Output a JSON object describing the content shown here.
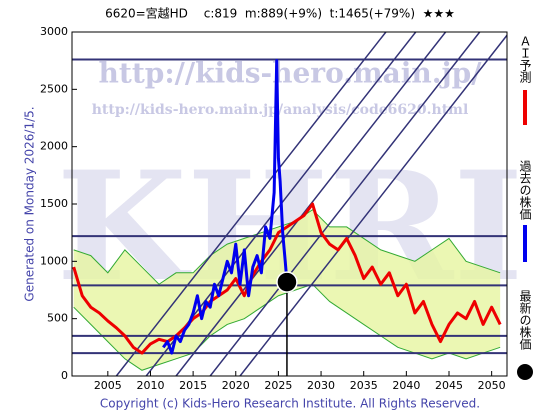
{
  "chart_data": {
    "type": "line",
    "title": "6620=宮越HD　 c:819  m:889(+9%)  t:1465(+79%)  ★★★",
    "side_label": "Generated on Monday 2026/1/5.",
    "footer": "Copyright (c) Kids-Hero Research Institute. All Rights Reserved.",
    "watermarks": [
      "http://kids-hero.main.jp/",
      "http://kids-hero.main.jp/analysis/code6620.html",
      "KHRI"
    ],
    "xlim": [
      2000.8,
      2051.8
    ],
    "xticks": [
      2005,
      2010,
      2015,
      2020,
      2025,
      2030,
      2035,
      2040,
      2045,
      2050
    ],
    "ylim": [
      0,
      3000
    ],
    "yticks": [
      0,
      500,
      1000,
      1500,
      2000,
      2500,
      3000
    ],
    "hlines": [
      2760,
      1220,
      790,
      350,
      200
    ],
    "hline_color": "#333377",
    "trend_lines": [
      {
        "x": [
          2006,
          2037.6
        ],
        "y": [
          0,
          3000
        ]
      },
      {
        "x": [
          2009.5,
          2041.1
        ],
        "y": [
          0,
          3000
        ]
      },
      {
        "x": [
          2013,
          2044.6
        ],
        "y": [
          0,
          3000
        ]
      },
      {
        "x": [
          2017,
          2048.6
        ],
        "y": [
          0,
          3000
        ]
      },
      {
        "x": [
          2020.5,
          2052.1
        ],
        "y": [
          0,
          3000
        ]
      }
    ],
    "band": {
      "color": "#e6f5a0",
      "edge": "#33aa33",
      "x": [
        2001,
        2003,
        2005,
        2007,
        2009,
        2011,
        2013,
        2015,
        2017,
        2019,
        2021,
        2023,
        2025,
        2027,
        2029,
        2031,
        2033,
        2035,
        2037,
        2039,
        2041,
        2043,
        2045,
        2047,
        2049,
        2051
      ],
      "upper": [
        1100,
        1050,
        900,
        1100,
        950,
        800,
        900,
        900,
        1050,
        1150,
        1200,
        1250,
        1300,
        1350,
        1450,
        1300,
        1300,
        1200,
        1100,
        1050,
        1000,
        1100,
        1200,
        1000,
        950,
        900
      ],
      "lower": [
        600,
        450,
        300,
        150,
        50,
        100,
        150,
        200,
        350,
        450,
        500,
        600,
        700,
        750,
        800,
        650,
        550,
        450,
        350,
        250,
        200,
        150,
        200,
        150,
        200,
        250
      ]
    },
    "series": [
      {
        "name": "ＡＩ予測",
        "color": "#ee0000",
        "x": [
          2001,
          2002,
          2003,
          2004,
          2005,
          2006,
          2007,
          2008,
          2009,
          2010,
          2011,
          2012,
          2013,
          2014,
          2015,
          2016,
          2017,
          2018,
          2019,
          2020,
          2021,
          2022,
          2023,
          2024,
          2025,
          2026,
          2027,
          2028,
          2029,
          2030,
          2031,
          2032,
          2033,
          2034,
          2035,
          2036,
          2037,
          2038,
          2039,
          2040,
          2041,
          2042,
          2043,
          2044,
          2045,
          2046,
          2047,
          2048,
          2049,
          2050,
          2051
        ],
        "values": [
          950,
          700,
          600,
          550,
          480,
          420,
          350,
          250,
          200,
          280,
          320,
          300,
          350,
          420,
          500,
          550,
          650,
          700,
          750,
          850,
          700,
          880,
          1000,
          1100,
          1250,
          1300,
          1350,
          1400,
          1500,
          1250,
          1150,
          1100,
          1200,
          1050,
          850,
          950,
          800,
          900,
          700,
          800,
          550,
          650,
          450,
          300,
          450,
          550,
          500,
          650,
          450,
          600,
          450
        ]
      },
      {
        "name": "過去の株価",
        "color": "#0000ee",
        "x": [
          2011.5,
          2012,
          2012.5,
          2013,
          2013.5,
          2014,
          2014.5,
          2015,
          2015.5,
          2016,
          2016.5,
          2017,
          2017.5,
          2018,
          2018.5,
          2019,
          2019.5,
          2020,
          2020.5,
          2021,
          2021.5,
          2022,
          2022.5,
          2023,
          2023.5,
          2024,
          2024.5,
          2024.8,
          2025,
          2025.2,
          2025.5,
          2025.8,
          2026
        ],
        "values": [
          250,
          300,
          200,
          350,
          300,
          400,
          450,
          550,
          700,
          500,
          650,
          600,
          800,
          700,
          850,
          1000,
          900,
          1150,
          800,
          1100,
          700,
          950,
          1050,
          900,
          1300,
          1200,
          1600,
          2750,
          1900,
          1700,
          1250,
          1000,
          819
        ]
      },
      {
        "name": "最新の株価",
        "color": "#000000",
        "x": [
          2026
        ],
        "values": [
          819
        ]
      }
    ]
  }
}
